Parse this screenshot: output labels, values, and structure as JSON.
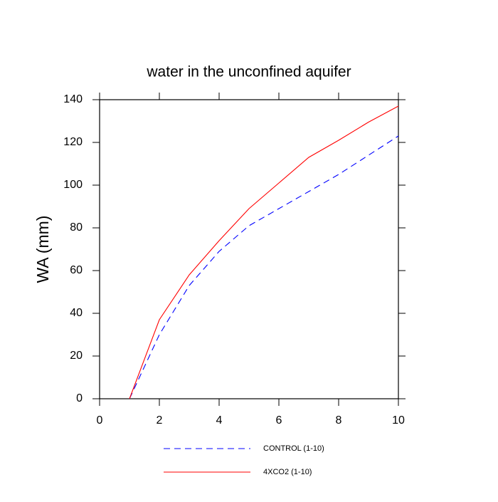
{
  "chart_data": {
    "type": "line",
    "title": "water in the unconfined aquifer",
    "y_label": "WA  (mm)",
    "x": [
      1,
      2,
      3,
      4,
      5,
      6,
      7,
      8,
      9,
      10
    ],
    "series": [
      {
        "name": "CONTROL (1-10)",
        "color": "#0000ff",
        "line_style": "dashed",
        "values": [
          0,
          30,
          53,
          69,
          81,
          89,
          97,
          105,
          114,
          123
        ]
      },
      {
        "name": "4XCO2 (1-10)",
        "color": "#ff0000",
        "line_style": "solid",
        "values": [
          0,
          37,
          58,
          74,
          89,
          101,
          113,
          121,
          129.5,
          137
        ]
      }
    ],
    "xlim": [
      0,
      10
    ],
    "xticks": [
      0,
      2,
      4,
      6,
      8,
      10
    ],
    "ylim": [
      0,
      140
    ],
    "yticks": [
      0,
      20,
      40,
      60,
      80,
      100,
      120,
      140
    ],
    "grid": false
  }
}
